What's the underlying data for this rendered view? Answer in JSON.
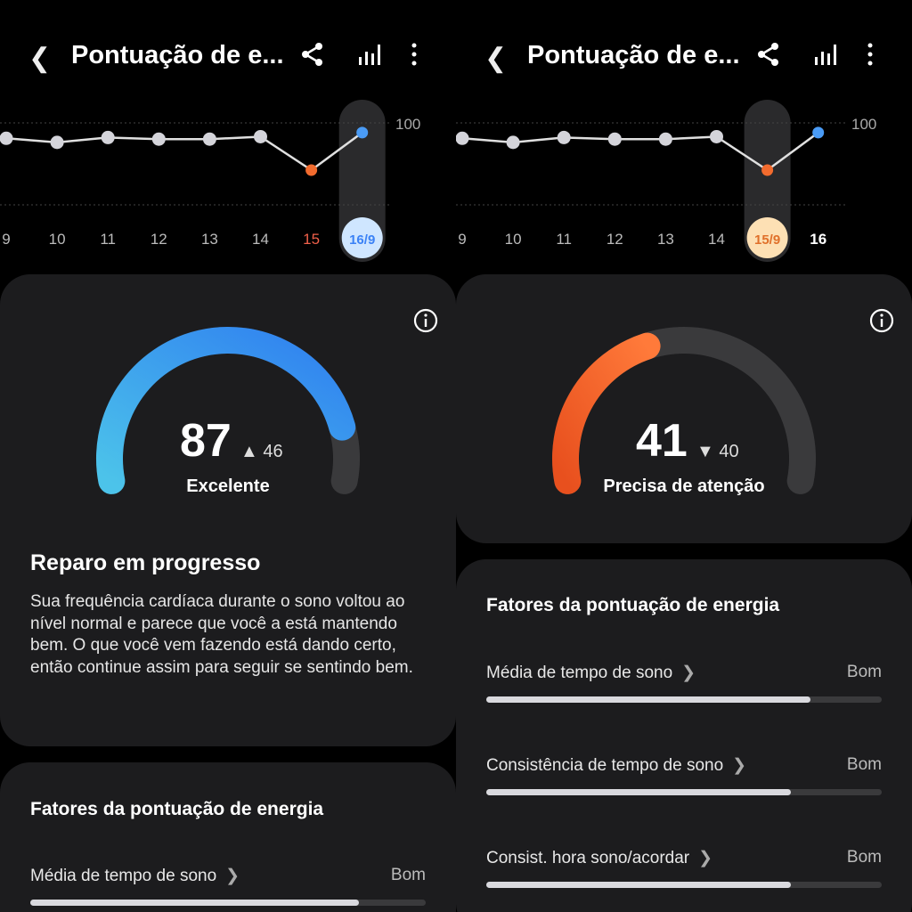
{
  "panels": [
    {
      "title": "Pontuação de e...",
      "chart": {
        "x_labels": [
          "9",
          "10",
          "11",
          "12",
          "13",
          "14",
          "15",
          "16/9"
        ],
        "values": [
          80,
          75,
          81,
          79,
          79,
          82,
          41,
          87
        ],
        "y_tick": "100",
        "selected_index": 7,
        "selected_color": "#cfe6ff",
        "selected_text_color": "#3b82f6"
      },
      "score": "87",
      "delta": "46",
      "delta_dir": "up",
      "status": "Excelente",
      "gauge_fraction": 0.87,
      "heading": "Reparo em progresso",
      "description": "Sua frequência cardíaca durante o sono voltou ao nível normal e parece que você a está mantendo bem. O que você vem fazendo está dando certo, então continue assim para seguir se sentindo bem.",
      "factors_title": "Fatores da pontuação de energia",
      "factors": [
        {
          "label": "Média de tempo de sono",
          "value": "Bom",
          "fraction": 0.83
        }
      ]
    },
    {
      "title": "Pontuação de e...",
      "chart": {
        "x_labels": [
          "9",
          "10",
          "11",
          "12",
          "13",
          "14",
          "15/9",
          "16"
        ],
        "values": [
          80,
          75,
          81,
          79,
          79,
          82,
          41,
          87
        ],
        "y_tick": "100",
        "selected_index": 6,
        "selected_color": "#fde0b4",
        "selected_text_color": "#e0702a"
      },
      "score": "41",
      "delta": "40",
      "delta_dir": "down",
      "status": "Precisa de atenção",
      "gauge_fraction": 0.41,
      "factors_title": "Fatores da pontuação de energia",
      "factors": [
        {
          "label": "Média de tempo de sono",
          "value": "Bom",
          "fraction": 0.82
        },
        {
          "label": "Consistência de tempo de sono",
          "value": "Bom",
          "fraction": 0.77
        },
        {
          "label": "Consist. hora sono/acordar",
          "value": "Bom",
          "fraction": 0.77
        }
      ]
    }
  ],
  "colors": {
    "low": "#f26b2e",
    "high": "#4a9bf5",
    "point": "#d4d4da",
    "card": "#1c1c1e"
  }
}
